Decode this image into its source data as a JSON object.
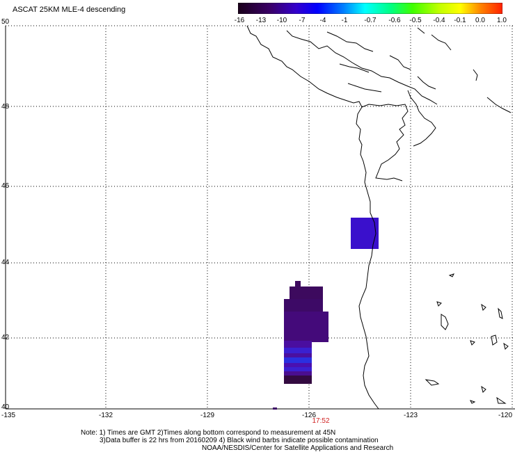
{
  "title": "ASCAT 25KM MLE-4 descending",
  "colorbar": {
    "labels": [
      "-16",
      "-13",
      "-10",
      "-7",
      "-4",
      "-1",
      "-0.7",
      "-0.6",
      "-0.5",
      "-0.4",
      "-0.1",
      "0.0",
      "1.0"
    ],
    "colors": [
      "#2a002a",
      "#3d0a66",
      "#3300cc",
      "#0000ff",
      "#0080ff",
      "#00ffff",
      "#00ff80",
      "#40ff00",
      "#c0ff00",
      "#ffff00",
      "#ff8000",
      "#ff2000"
    ]
  },
  "axes": {
    "lat_labels": [
      "50",
      "48",
      "46",
      "44",
      "42",
      "40"
    ],
    "lon_labels": [
      "-135",
      "-132",
      "-129",
      "-126",
      "-123",
      "-120"
    ]
  },
  "time_label": "17:52",
  "notes": [
    "Note: 1) Times are GMT 2)Times along bottom correspond to measurement at 45N",
    "3)Data buffer is 22 hrs from 20160209 4) Black wind barbs indicate possible contamination",
    "NOAA/NESDIS/Center for Satellite Applications and Research"
  ]
}
